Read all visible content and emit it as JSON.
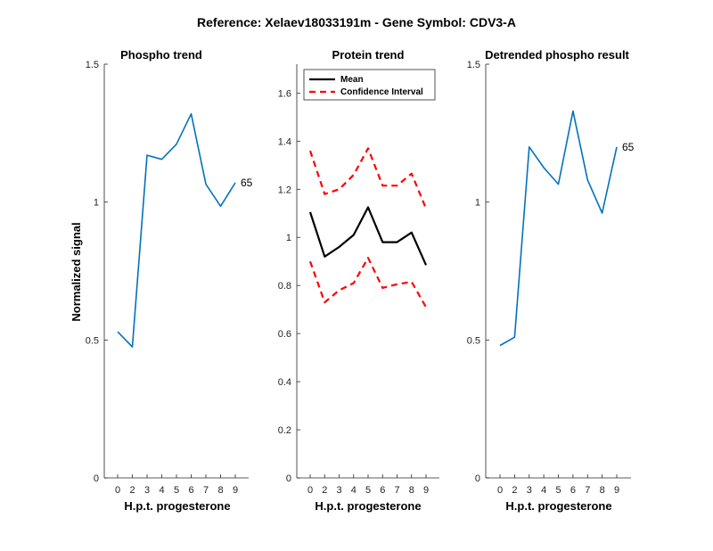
{
  "figure": {
    "title": "Reference:  Xelaev18033191m - Gene Symbol:  CDV3-A"
  },
  "colors": {
    "phospho_line": "#0072BD",
    "mean_line": "#000000",
    "ci_line": "#FF0000",
    "axis": "#262626"
  },
  "chart_data": [
    {
      "type": "line",
      "title": "Phospho trend",
      "xlabel": "H.p.t. progesterone",
      "ylabel": "Normalized signal",
      "categories": [
        "0",
        "2",
        "3",
        "4",
        "5",
        "6",
        "7",
        "8",
        "9"
      ],
      "ylim": [
        0,
        1.5
      ],
      "yticks": [
        0,
        0.5,
        1,
        1.5
      ],
      "ytick_labels": [
        "0",
        "0.5",
        "1",
        "1.5"
      ],
      "series": [
        {
          "values": [
            0.53,
            0.475,
            1.17,
            1.155,
            1.21,
            1.32,
            1.065,
            0.985,
            1.07
          ]
        }
      ],
      "end_label": "65",
      "grid": false
    },
    {
      "type": "line",
      "title": "Protein trend",
      "xlabel": "H.p.t. progesterone",
      "ylabel": "",
      "categories": [
        "0",
        "2",
        "3",
        "4",
        "5",
        "6",
        "7",
        "8",
        "9"
      ],
      "ylim": [
        0,
        1.72
      ],
      "yticks": [
        0,
        0.2,
        0.4,
        0.6,
        0.8,
        1,
        1.2,
        1.4,
        1.6
      ],
      "ytick_labels": [
        "0",
        "0.2",
        "0.4",
        "0.6",
        "0.8",
        "1",
        "1.2",
        "1.4",
        "1.6"
      ],
      "series": [
        {
          "name": "Mean",
          "values": [
            1.105,
            0.92,
            0.96,
            1.01,
            1.125,
            0.98,
            0.98,
            1.02,
            0.885
          ]
        },
        {
          "name": "Confidence Interval",
          "values": [
            1.36,
            1.18,
            1.2,
            1.26,
            1.37,
            1.215,
            1.215,
            1.265,
            1.12
          ]
        },
        {
          "values": [
            0.9,
            0.73,
            0.78,
            0.81,
            0.915,
            0.79,
            0.805,
            0.815,
            0.71
          ]
        }
      ],
      "legend": {
        "position": "top-left",
        "entries": [
          "Mean",
          "Confidence Interval"
        ]
      },
      "grid": false
    },
    {
      "type": "line",
      "title": "Detrended phospho result",
      "xlabel": "H.p.t. progesterone",
      "ylabel": "",
      "categories": [
        "0",
        "2",
        "3",
        "4",
        "5",
        "6",
        "7",
        "8",
        "9"
      ],
      "ylim": [
        0,
        1.5
      ],
      "yticks": [
        0,
        0.5,
        1,
        1.5
      ],
      "ytick_labels": [
        "0",
        "0.5",
        "1",
        "1.5"
      ],
      "series": [
        {
          "values": [
            0.48,
            0.51,
            1.2,
            1.125,
            1.065,
            1.33,
            1.08,
            0.96,
            1.2
          ]
        }
      ],
      "end_label": "65",
      "grid": false
    }
  ]
}
